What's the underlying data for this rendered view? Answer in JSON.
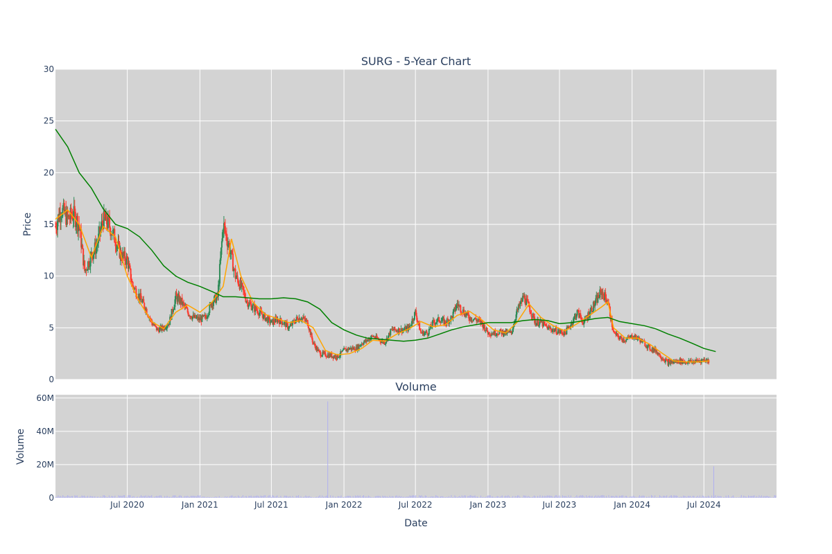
{
  "chart_data": {
    "type": "candlestick",
    "title": "SURG - 5-Year Chart",
    "price_panel": {
      "ylabel": "Price",
      "ylim": [
        0,
        30
      ],
      "yticks": [
        0,
        5,
        10,
        15,
        20,
        25,
        30
      ],
      "grid": true,
      "series": [
        {
          "kind": "ohlc",
          "up_color": "#2e8b57",
          "down_color": "#ff3b30",
          "approx_close_points": [
            [
              "2020-01-01",
              14.8
            ],
            [
              "2020-01-15",
              16.5
            ],
            [
              "2020-02-01",
              15.5
            ],
            [
              "2020-02-15",
              16.0
            ],
            [
              "2020-03-01",
              15.0
            ],
            [
              "2020-03-15",
              10.5
            ],
            [
              "2020-04-01",
              12.0
            ],
            [
              "2020-04-15",
              13.0
            ],
            [
              "2020-05-01",
              15.5
            ],
            [
              "2020-05-15",
              15.0
            ],
            [
              "2020-06-01",
              13.5
            ],
            [
              "2020-06-15",
              12.0
            ],
            [
              "2020-07-01",
              11.5
            ],
            [
              "2020-07-15",
              9.0
            ],
            [
              "2020-08-01",
              8.0
            ],
            [
              "2020-08-15",
              7.0
            ],
            [
              "2020-09-01",
              5.5
            ],
            [
              "2020-09-15",
              4.8
            ],
            [
              "2020-10-01",
              5.0
            ],
            [
              "2020-10-15",
              5.5
            ],
            [
              "2020-11-01",
              8.0
            ],
            [
              "2020-11-15",
              7.5
            ],
            [
              "2020-12-01",
              6.5
            ],
            [
              "2020-12-15",
              6.0
            ],
            [
              "2021-01-01",
              5.8
            ],
            [
              "2021-01-15",
              6.0
            ],
            [
              "2021-02-01",
              7.5
            ],
            [
              "2021-02-15",
              8.0
            ],
            [
              "2021-03-01",
              15.0
            ],
            [
              "2021-03-15",
              13.0
            ],
            [
              "2021-04-01",
              10.0
            ],
            [
              "2021-04-15",
              9.0
            ],
            [
              "2021-05-01",
              7.5
            ],
            [
              "2021-05-15",
              7.0
            ],
            [
              "2021-06-01",
              6.5
            ],
            [
              "2021-06-15",
              6.0
            ],
            [
              "2021-07-01",
              5.5
            ],
            [
              "2021-07-15",
              5.8
            ],
            [
              "2021-08-01",
              5.5
            ],
            [
              "2021-08-15",
              5.0
            ],
            [
              "2021-09-01",
              5.8
            ],
            [
              "2021-09-15",
              6.0
            ],
            [
              "2021-10-01",
              5.5
            ],
            [
              "2021-10-15",
              3.5
            ],
            [
              "2021-11-01",
              2.5
            ],
            [
              "2021-11-15",
              2.4
            ],
            [
              "2021-12-01",
              2.3
            ],
            [
              "2021-12-15",
              2.2
            ],
            [
              "2022-01-01",
              2.8
            ],
            [
              "2022-01-15",
              3.0
            ],
            [
              "2022-02-01",
              3.0
            ],
            [
              "2022-02-15",
              3.5
            ],
            [
              "2022-03-01",
              3.8
            ],
            [
              "2022-03-15",
              4.2
            ],
            [
              "2022-04-01",
              3.8
            ],
            [
              "2022-04-15",
              3.6
            ],
            [
              "2022-05-01",
              4.8
            ],
            [
              "2022-05-15",
              4.8
            ],
            [
              "2022-06-01",
              4.8
            ],
            [
              "2022-06-15",
              5.0
            ],
            [
              "2022-07-01",
              6.5
            ],
            [
              "2022-07-15",
              4.5
            ],
            [
              "2022-08-01",
              4.5
            ],
            [
              "2022-08-15",
              5.5
            ],
            [
              "2022-09-01",
              5.8
            ],
            [
              "2022-09-15",
              5.5
            ],
            [
              "2022-10-01",
              6.0
            ],
            [
              "2022-10-15",
              7.3
            ],
            [
              "2022-11-01",
              6.5
            ],
            [
              "2022-11-15",
              6.0
            ],
            [
              "2022-12-01",
              5.8
            ],
            [
              "2022-12-15",
              5.5
            ],
            [
              "2023-01-01",
              4.5
            ],
            [
              "2023-01-15",
              4.5
            ],
            [
              "2023-02-01",
              4.6
            ],
            [
              "2023-02-15",
              4.5
            ],
            [
              "2023-03-01",
              4.5
            ],
            [
              "2023-03-15",
              6.5
            ],
            [
              "2023-04-01",
              8.0
            ],
            [
              "2023-04-15",
              7.0
            ],
            [
              "2023-05-01",
              5.5
            ],
            [
              "2023-05-15",
              5.5
            ],
            [
              "2023-06-01",
              5.0
            ],
            [
              "2023-06-15",
              4.8
            ],
            [
              "2023-07-01",
              4.6
            ],
            [
              "2023-07-15",
              4.5
            ],
            [
              "2023-08-01",
              5.5
            ],
            [
              "2023-08-15",
              6.5
            ],
            [
              "2023-09-01",
              5.5
            ],
            [
              "2023-09-15",
              6.5
            ],
            [
              "2023-10-01",
              7.5
            ],
            [
              "2023-10-15",
              8.5
            ],
            [
              "2023-11-01",
              7.5
            ],
            [
              "2023-11-15",
              4.5
            ],
            [
              "2023-12-01",
              4.0
            ],
            [
              "2023-12-15",
              3.8
            ],
            [
              "2024-01-01",
              4.2
            ],
            [
              "2024-01-15",
              4.0
            ],
            [
              "2024-02-01",
              3.5
            ],
            [
              "2024-02-15",
              3.0
            ],
            [
              "2024-03-01",
              2.8
            ],
            [
              "2024-03-15",
              2.2
            ],
            [
              "2024-04-01",
              1.6
            ],
            [
              "2024-04-15",
              1.7
            ],
            [
              "2024-05-01",
              1.8
            ],
            [
              "2024-05-15",
              1.7
            ],
            [
              "2024-06-01",
              1.7
            ],
            [
              "2024-06-15",
              1.8
            ],
            [
              "2024-07-01",
              1.9
            ],
            [
              "2024-07-15",
              1.8
            ]
          ]
        },
        {
          "kind": "line",
          "color": "#ffa500",
          "points": [
            [
              "2020-01-01",
              15.5
            ],
            [
              "2020-02-01",
              16.4
            ],
            [
              "2020-03-01",
              15.0
            ],
            [
              "2020-04-01",
              11.8
            ],
            [
              "2020-05-01",
              14.8
            ],
            [
              "2020-06-01",
              13.8
            ],
            [
              "2020-07-01",
              10.0
            ],
            [
              "2020-08-01",
              7.5
            ],
            [
              "2020-09-01",
              5.6
            ],
            [
              "2020-10-01",
              4.9
            ],
            [
              "2020-11-01",
              6.5
            ],
            [
              "2020-12-01",
              7.2
            ],
            [
              "2021-01-01",
              6.5
            ],
            [
              "2021-02-01",
              7.5
            ],
            [
              "2021-03-01",
              9.0
            ],
            [
              "2021-03-22",
              13.6
            ],
            [
              "2021-04-15",
              10.0
            ],
            [
              "2021-05-15",
              7.5
            ],
            [
              "2021-06-15",
              6.3
            ],
            [
              "2021-07-15",
              5.9
            ],
            [
              "2021-08-15",
              5.5
            ],
            [
              "2021-09-15",
              5.7
            ],
            [
              "2021-10-15",
              5.0
            ],
            [
              "2021-11-15",
              2.8
            ],
            [
              "2021-12-15",
              2.4
            ],
            [
              "2022-01-15",
              2.5
            ],
            [
              "2022-02-15",
              3.0
            ],
            [
              "2022-03-15",
              3.8
            ],
            [
              "2022-04-15",
              3.7
            ],
            [
              "2022-05-15",
              4.4
            ],
            [
              "2022-06-15",
              4.9
            ],
            [
              "2022-07-15",
              5.6
            ],
            [
              "2022-08-15",
              5.1
            ],
            [
              "2022-09-15",
              5.3
            ],
            [
              "2022-10-15",
              6.2
            ],
            [
              "2022-11-15",
              6.6
            ],
            [
              "2022-12-15",
              5.8
            ],
            [
              "2023-01-15",
              4.8
            ],
            [
              "2023-02-15",
              4.5
            ],
            [
              "2023-03-15",
              5.5
            ],
            [
              "2023-04-15",
              7.3
            ],
            [
              "2023-05-15",
              6.0
            ],
            [
              "2023-06-15",
              5.2
            ],
            [
              "2023-07-15",
              4.7
            ],
            [
              "2023-08-15",
              5.4
            ],
            [
              "2023-09-15",
              6.2
            ],
            [
              "2023-10-15",
              7.0
            ],
            [
              "2023-11-01",
              7.5
            ],
            [
              "2023-11-15",
              5.0
            ],
            [
              "2023-12-15",
              4.0
            ],
            [
              "2024-01-15",
              4.0
            ],
            [
              "2024-02-15",
              3.4
            ],
            [
              "2024-03-15",
              2.6
            ],
            [
              "2024-04-15",
              1.8
            ],
            [
              "2024-05-15",
              1.7
            ],
            [
              "2024-06-15",
              1.7
            ],
            [
              "2024-07-15",
              1.8
            ]
          ]
        },
        {
          "kind": "line",
          "color": "#008000",
          "points": [
            [
              "2020-01-01",
              24.2
            ],
            [
              "2020-02-01",
              22.5
            ],
            [
              "2020-03-01",
              20.0
            ],
            [
              "2020-04-01",
              18.5
            ],
            [
              "2020-05-01",
              16.5
            ],
            [
              "2020-06-01",
              15.0
            ],
            [
              "2020-07-01",
              14.6
            ],
            [
              "2020-08-01",
              13.8
            ],
            [
              "2020-09-01",
              12.5
            ],
            [
              "2020-10-01",
              11.0
            ],
            [
              "2020-11-01",
              10.0
            ],
            [
              "2020-12-01",
              9.4
            ],
            [
              "2021-01-01",
              9.0
            ],
            [
              "2021-02-01",
              8.5
            ],
            [
              "2021-03-01",
              8.0
            ],
            [
              "2021-04-01",
              8.0
            ],
            [
              "2021-05-01",
              7.9
            ],
            [
              "2021-06-01",
              7.8
            ],
            [
              "2021-07-01",
              7.8
            ],
            [
              "2021-08-01",
              7.9
            ],
            [
              "2021-09-01",
              7.8
            ],
            [
              "2021-10-01",
              7.5
            ],
            [
              "2021-11-01",
              6.8
            ],
            [
              "2021-12-01",
              5.5
            ],
            [
              "2022-01-01",
              4.8
            ],
            [
              "2022-02-01",
              4.3
            ],
            [
              "2022-03-01",
              4.0
            ],
            [
              "2022-04-01",
              3.9
            ],
            [
              "2022-05-01",
              3.8
            ],
            [
              "2022-06-01",
              3.7
            ],
            [
              "2022-07-01",
              3.8
            ],
            [
              "2022-08-01",
              4.0
            ],
            [
              "2022-09-01",
              4.4
            ],
            [
              "2022-10-01",
              4.8
            ],
            [
              "2022-11-01",
              5.1
            ],
            [
              "2022-12-01",
              5.3
            ],
            [
              "2023-01-01",
              5.5
            ],
            [
              "2023-02-01",
              5.5
            ],
            [
              "2023-03-01",
              5.5
            ],
            [
              "2023-04-01",
              5.7
            ],
            [
              "2023-05-01",
              5.8
            ],
            [
              "2023-06-01",
              5.7
            ],
            [
              "2023-07-01",
              5.4
            ],
            [
              "2023-08-01",
              5.5
            ],
            [
              "2023-09-01",
              5.7
            ],
            [
              "2023-10-01",
              5.9
            ],
            [
              "2023-11-01",
              6.0
            ],
            [
              "2023-12-01",
              5.6
            ],
            [
              "2024-01-01",
              5.4
            ],
            [
              "2024-02-01",
              5.2
            ],
            [
              "2024-03-01",
              4.9
            ],
            [
              "2024-04-01",
              4.4
            ],
            [
              "2024-05-01",
              4.0
            ],
            [
              "2024-06-01",
              3.5
            ],
            [
              "2024-07-01",
              3.0
            ],
            [
              "2024-07-31",
              2.7
            ]
          ]
        }
      ]
    },
    "volume_panel": {
      "title": "Volume",
      "ylabel": "Volume",
      "yticks": [
        0,
        20,
        40,
        60
      ],
      "ytick_labels": [
        "0",
        "20M",
        "40M",
        "60M"
      ],
      "ylim": [
        0,
        62
      ],
      "unit": "M",
      "grid": true,
      "bar_color": "#b0b0f0",
      "spikes": [
        [
          "2021-11-20",
          58.0
        ],
        [
          "2024-07-25",
          19.0
        ]
      ]
    },
    "xaxis": {
      "label": "Date",
      "ticks": [
        {
          "date": "2020-07-01",
          "label": "Jul 2020"
        },
        {
          "date": "2021-01-01",
          "label": "Jan 2021"
        },
        {
          "date": "2021-07-01",
          "label": "Jul 2021"
        },
        {
          "date": "2022-01-01",
          "label": "Jan 2022"
        },
        {
          "date": "2022-07-01",
          "label": "Jul 2022"
        },
        {
          "date": "2023-01-01",
          "label": "Jan 2023"
        },
        {
          "date": "2023-07-01",
          "label": "Jul 2023"
        },
        {
          "date": "2024-01-01",
          "label": "Jan 2024"
        },
        {
          "date": "2024-07-01",
          "label": "Jul 2024"
        }
      ],
      "range": [
        "2020-01-01",
        "2025-01-01"
      ]
    },
    "plot_background": "#d3d3d3",
    "grid_color": "#ffffff"
  }
}
